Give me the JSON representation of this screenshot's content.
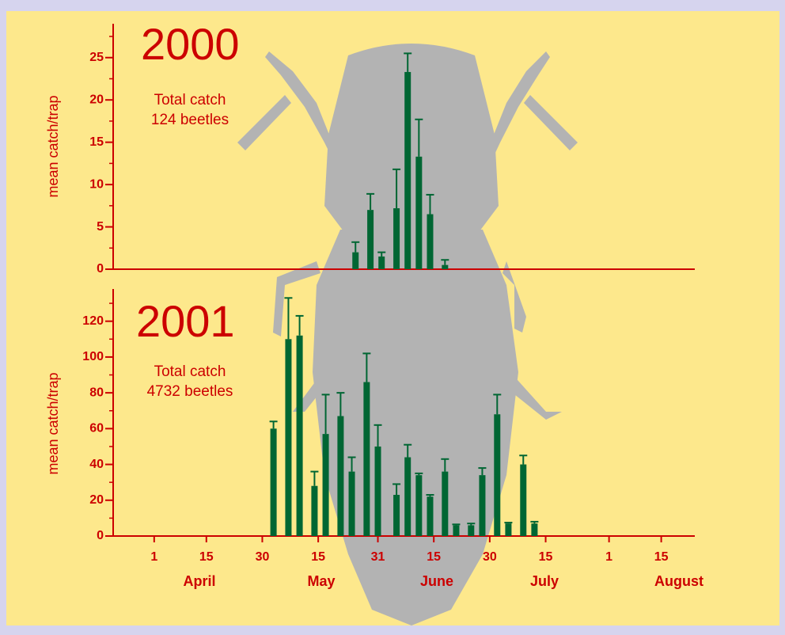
{
  "chart_data": [
    {
      "type": "bar",
      "color": "#006633",
      "axis_color": "#cc0000",
      "ylabel": "mean catch/trap",
      "year": "2000",
      "note": [
        "Total  catch",
        "124 beetles"
      ],
      "x": [
        145,
        149,
        152,
        156,
        159,
        162,
        165,
        169
      ],
      "values": [
        2,
        7,
        1.5,
        7.2,
        23.3,
        13.3,
        6.5,
        0.5
      ],
      "errors": [
        1.2,
        1.9,
        0.5,
        4.6,
        2.2,
        4.4,
        2.3,
        0.6
      ],
      "xlim": [
        80,
        236
      ],
      "ylim": [
        0,
        29
      ],
      "yticks": [
        0,
        5,
        10,
        15,
        20,
        25
      ],
      "minor_yticks": [
        2.5,
        7.5,
        12.5,
        17.5,
        22.5,
        27.5
      ]
    },
    {
      "type": "bar",
      "color": "#006633",
      "axis_color": "#cc0000",
      "ylabel": "mean catch/trap",
      "year": "2001",
      "note": [
        "Total catch",
        "4732 beetles"
      ],
      "x": [
        123,
        127,
        130,
        134,
        137,
        141,
        144,
        148,
        151,
        156,
        159,
        162,
        165,
        169,
        172,
        176,
        179,
        183,
        186,
        190,
        193
      ],
      "values": [
        60,
        110,
        112,
        28,
        57,
        67,
        36,
        86,
        50,
        23,
        44,
        34,
        22,
        36,
        6,
        6,
        34,
        68,
        7,
        40,
        7
      ],
      "errors": [
        4,
        23,
        11,
        8,
        22,
        13,
        8,
        16,
        12,
        6,
        7,
        1,
        1,
        7,
        0.5,
        1,
        4,
        11,
        0.5,
        5,
        1
      ],
      "xlim": [
        80,
        236
      ],
      "ylim": [
        0,
        138
      ],
      "yticks": [
        0,
        20,
        40,
        60,
        80,
        100,
        120
      ],
      "minor_yticks": [
        10,
        30,
        50,
        70,
        90,
        110,
        130
      ],
      "xticks": [
        {
          "value": 91,
          "label": "1"
        },
        {
          "value": 105,
          "label": "15"
        },
        {
          "value": 120,
          "label": "30"
        },
        {
          "value": 135,
          "label": "15"
        },
        {
          "value": 151,
          "label": "31"
        },
        {
          "value": 166,
          "label": "15"
        },
        {
          "value": 181,
          "label": "30"
        },
        {
          "value": 196,
          "label": "15"
        },
        {
          "value": 213,
          "label": "1"
        },
        {
          "value": 227,
          "label": "15"
        }
      ],
      "months": [
        "April",
        "May",
        "June",
        "July",
        "August"
      ]
    }
  ]
}
